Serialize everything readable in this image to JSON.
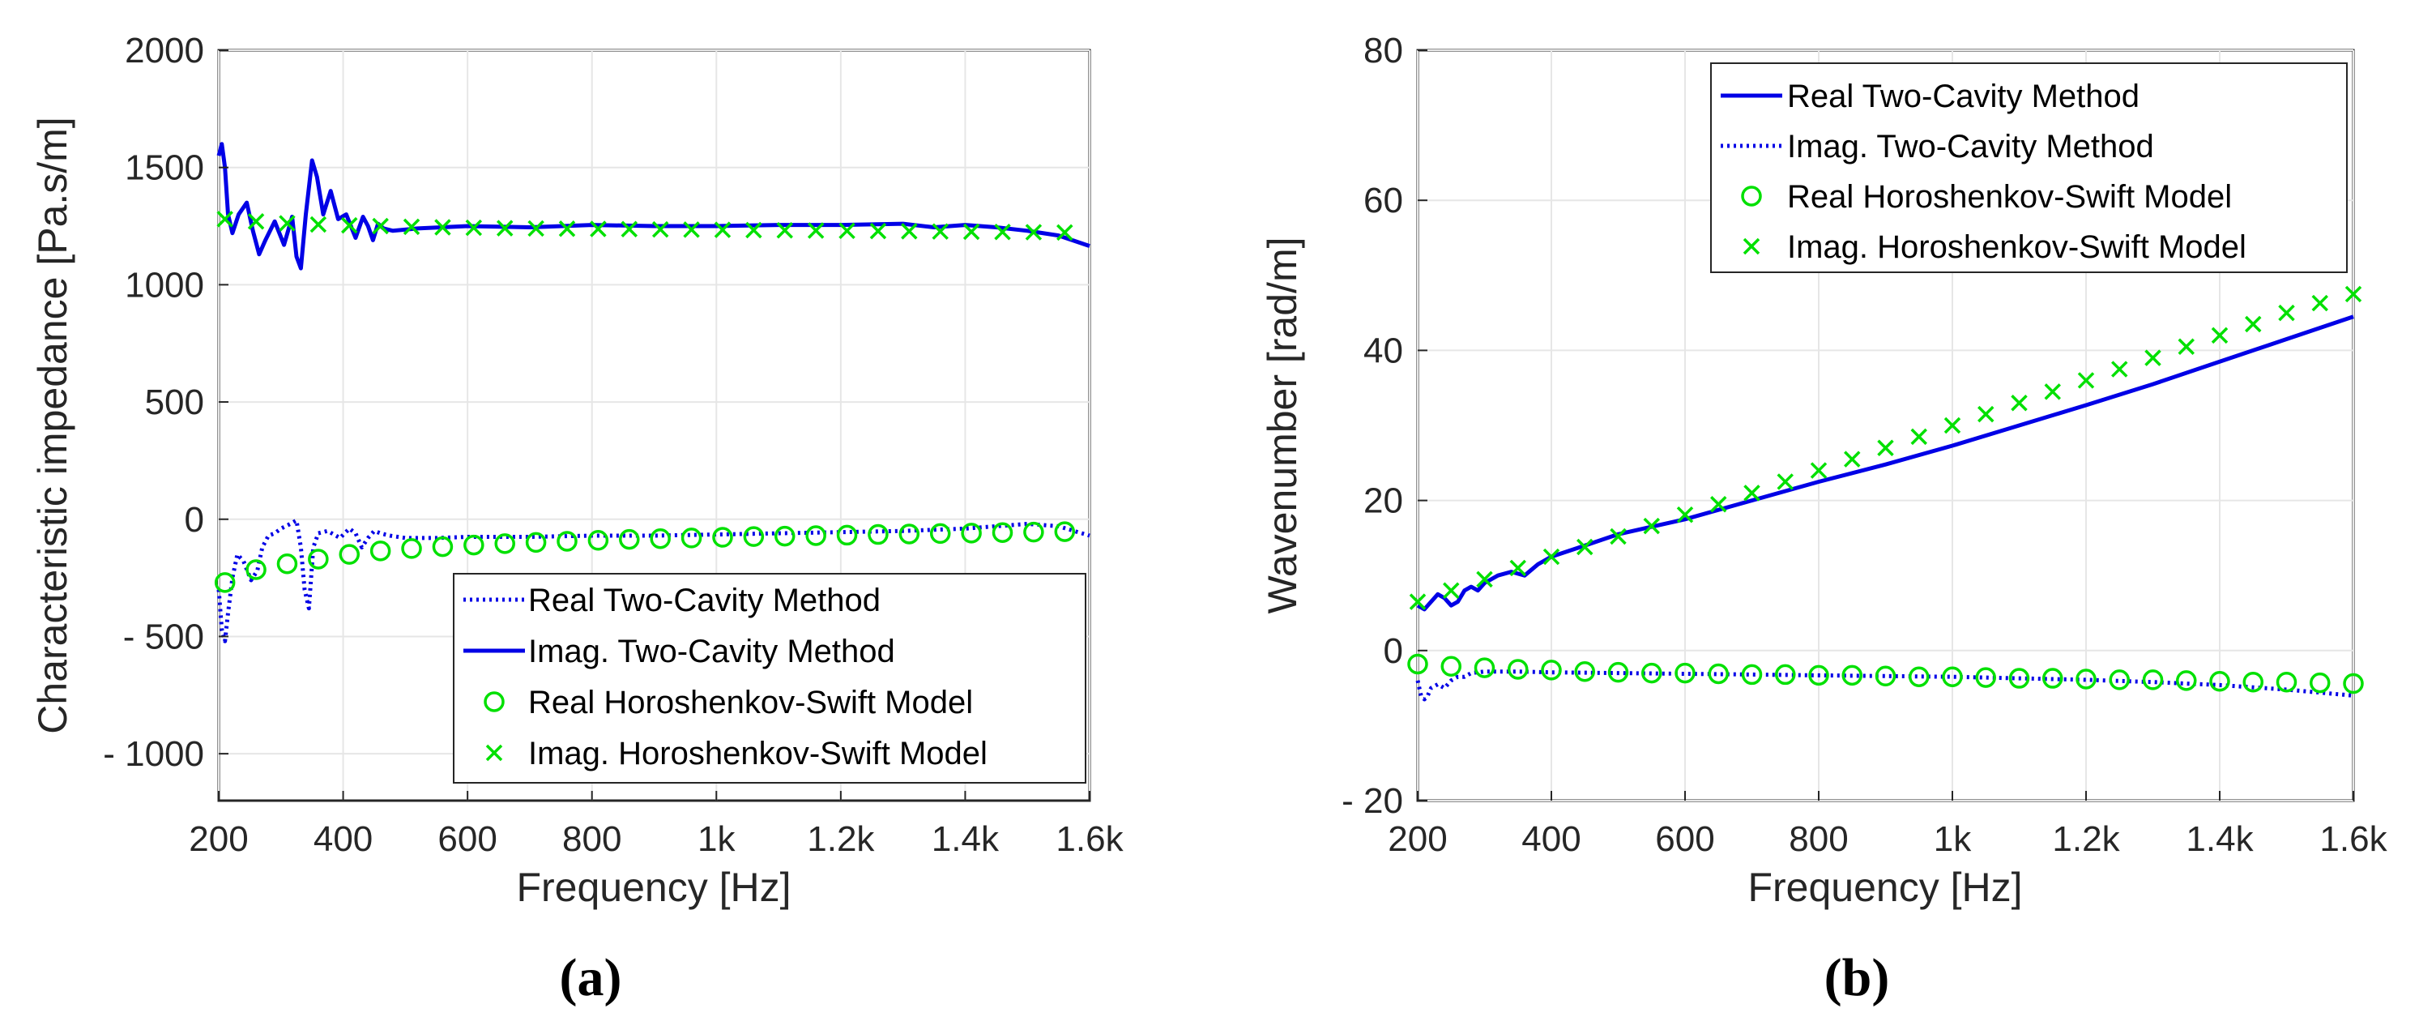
{
  "colors": {
    "line": "#0000e6",
    "marker": "#00e000",
    "grid": "#e6e6e6",
    "axis": "#262626"
  },
  "chart_data": [
    {
      "type": "line",
      "panel_label": "(a)",
      "xlabel": "Frequency [Hz]",
      "ylabel": "Characteristic impedance [Pa.s/m]",
      "xlim": [
        200,
        1600
      ],
      "ylim": [
        -1200,
        2000
      ],
      "xticks": [
        200,
        400,
        600,
        800,
        1000,
        1200,
        1400,
        1600
      ],
      "xtick_labels": [
        "200",
        "400",
        "600",
        "800",
        "1k",
        "1.2k",
        "1.4k",
        "1.6k"
      ],
      "yticks": [
        -1000,
        -500,
        0,
        500,
        1000,
        1500,
        2000
      ],
      "ytick_labels": [
        "- 1000",
        "- 500",
        "0",
        "500",
        "1000",
        "1500",
        "2000"
      ],
      "grid": true,
      "legend_position": "bottom-right",
      "series": [
        {
          "name": "Real Two-Cavity Method",
          "style": "dotted",
          "x": [
            200,
            205,
            210,
            215,
            222,
            230,
            240,
            252,
            262,
            270,
            280,
            290,
            300,
            315,
            325,
            332,
            338,
            345,
            352,
            360,
            375,
            395,
            410,
            420,
            430,
            440,
            450,
            460,
            475,
            500,
            550,
            600,
            650,
            700,
            800,
            900,
            1000,
            1100,
            1200,
            1300,
            1400,
            1450,
            1500,
            1550,
            1600
          ],
          "y": [
            -300,
            -470,
            -520,
            -400,
            -250,
            -150,
            -180,
            -260,
            -220,
            -120,
            -70,
            -60,
            -40,
            -20,
            -5,
            -120,
            -300,
            -380,
            -120,
            -60,
            -50,
            -80,
            -40,
            -60,
            -120,
            -80,
            -50,
            -60,
            -70,
            -80,
            -80,
            -75,
            -75,
            -75,
            -70,
            -70,
            -65,
            -60,
            -55,
            -50,
            -40,
            -30,
            -20,
            -30,
            -70
          ]
        },
        {
          "name": "Imag. Two-Cavity Method",
          "style": "solid",
          "x": [
            200,
            205,
            210,
            215,
            222,
            232,
            245,
            255,
            265,
            275,
            290,
            305,
            318,
            325,
            332,
            340,
            350,
            358,
            368,
            380,
            392,
            405,
            420,
            432,
            440,
            448,
            456,
            465,
            480,
            520,
            600,
            700,
            800,
            900,
            1000,
            1100,
            1200,
            1300,
            1350,
            1400,
            1450,
            1500,
            1550,
            1600
          ],
          "y": [
            1550,
            1600,
            1500,
            1300,
            1220,
            1300,
            1350,
            1230,
            1130,
            1190,
            1270,
            1170,
            1290,
            1120,
            1070,
            1300,
            1530,
            1460,
            1300,
            1400,
            1280,
            1300,
            1200,
            1290,
            1250,
            1190,
            1260,
            1240,
            1230,
            1240,
            1250,
            1245,
            1255,
            1250,
            1250,
            1255,
            1255,
            1260,
            1245,
            1255,
            1245,
            1230,
            1210,
            1165
          ]
        },
        {
          "name": "Real Horoshenkov-Swift Model",
          "marker": "o",
          "x": [
            210,
            260,
            310,
            360,
            410,
            460,
            510,
            560,
            610,
            660,
            710,
            760,
            810,
            860,
            910,
            960,
            1010,
            1060,
            1110,
            1160,
            1210,
            1260,
            1310,
            1360,
            1410,
            1460,
            1510,
            1560
          ],
          "y": [
            -270,
            -215,
            -190,
            -170,
            -150,
            -135,
            -125,
            -117,
            -110,
            -104,
            -99,
            -94,
            -90,
            -86,
            -83,
            -80,
            -77,
            -74,
            -72,
            -70,
            -68,
            -65,
            -63,
            -61,
            -59,
            -57,
            -55,
            -53
          ]
        },
        {
          "name": "Imag. Horoshenkov-Swift Model",
          "marker": "x",
          "x": [
            210,
            260,
            310,
            360,
            410,
            460,
            510,
            560,
            610,
            660,
            710,
            760,
            810,
            860,
            910,
            960,
            1010,
            1060,
            1110,
            1160,
            1210,
            1260,
            1310,
            1360,
            1410,
            1460,
            1510,
            1560
          ],
          "y": [
            1280,
            1270,
            1262,
            1257,
            1253,
            1250,
            1247,
            1245,
            1243,
            1241,
            1240,
            1239,
            1238,
            1237,
            1236,
            1235,
            1234,
            1233,
            1232,
            1231,
            1230,
            1229,
            1228,
            1227,
            1226,
            1225,
            1224,
            1223
          ]
        }
      ]
    },
    {
      "type": "line",
      "panel_label": "(b)",
      "xlabel": "Frequency [Hz]",
      "ylabel": "Wavenumber [rad/m]",
      "xlim": [
        200,
        1600
      ],
      "ylim": [
        -20,
        80
      ],
      "xticks": [
        200,
        400,
        600,
        800,
        1000,
        1200,
        1400,
        1600
      ],
      "xtick_labels": [
        "200",
        "400",
        "600",
        "800",
        "1k",
        "1.2k",
        "1.4k",
        "1.6k"
      ],
      "yticks": [
        -20,
        0,
        20,
        40,
        60,
        80
      ],
      "ytick_labels": [
        "- 20",
        "0",
        "20",
        "40",
        "60",
        "80"
      ],
      "grid": true,
      "legend_position": "top-right",
      "series": [
        {
          "name": "Real Two-Cavity Method",
          "style": "solid",
          "x": [
            200,
            210,
            220,
            230,
            240,
            250,
            260,
            270,
            280,
            290,
            300,
            320,
            340,
            360,
            380,
            400,
            450,
            500,
            600,
            700,
            800,
            900,
            1000,
            1100,
            1200,
            1300,
            1400,
            1500,
            1600
          ],
          "y": [
            6,
            5.5,
            6.5,
            7.5,
            7,
            6,
            6.5,
            8,
            8.5,
            8,
            9,
            10,
            10.5,
            10,
            11.5,
            12.5,
            14,
            15.5,
            17.5,
            20,
            22.5,
            24.8,
            27.3,
            30,
            32.7,
            35.5,
            38.5,
            41.5,
            44.5
          ]
        },
        {
          "name": "Imag. Two-Cavity Method",
          "style": "dotted",
          "x": [
            200,
            205,
            210,
            215,
            220,
            230,
            240,
            250,
            260,
            270,
            280,
            300,
            350,
            400,
            500,
            600,
            700,
            800,
            900,
            1000,
            1100,
            1200,
            1300,
            1400,
            1500,
            1600
          ],
          "y": [
            -4,
            -6,
            -6.5,
            -6,
            -5,
            -4.5,
            -5,
            -4,
            -3.5,
            -3.5,
            -3,
            -2.8,
            -2.8,
            -2.9,
            -3,
            -3.1,
            -3.2,
            -3.3,
            -3.4,
            -3.5,
            -3.7,
            -3.9,
            -4.2,
            -4.6,
            -5.2,
            -6
          ]
        },
        {
          "name": "Real Horoshenkov-Swift Model",
          "marker": "o",
          "x": [
            200,
            250,
            300,
            350,
            400,
            450,
            500,
            550,
            600,
            650,
            700,
            750,
            800,
            850,
            900,
            950,
            1000,
            1050,
            1100,
            1150,
            1200,
            1250,
            1300,
            1350,
            1400,
            1450,
            1500,
            1550,
            1600
          ],
          "y": [
            -1.8,
            -2.1,
            -2.3,
            -2.5,
            -2.6,
            -2.8,
            -2.9,
            -3.0,
            -3.0,
            -3.1,
            -3.2,
            -3.2,
            -3.3,
            -3.3,
            -3.4,
            -3.5,
            -3.5,
            -3.6,
            -3.7,
            -3.7,
            -3.8,
            -3.9,
            -3.9,
            -4.0,
            -4.1,
            -4.2,
            -4.2,
            -4.3,
            -4.4
          ]
        },
        {
          "name": "Imag. Horoshenkov-Swift Model",
          "marker": "x",
          "x": [
            200,
            250,
            300,
            350,
            400,
            450,
            500,
            550,
            600,
            650,
            700,
            750,
            800,
            850,
            900,
            950,
            1000,
            1050,
            1100,
            1150,
            1200,
            1250,
            1300,
            1350,
            1400,
            1450,
            1500,
            1550,
            1600
          ],
          "y": [
            6.5,
            8.0,
            9.5,
            11.0,
            12.5,
            13.8,
            15.2,
            16.6,
            18.1,
            19.5,
            21.0,
            22.5,
            24.0,
            25.5,
            27.0,
            28.5,
            30.0,
            31.5,
            33.0,
            34.5,
            36.0,
            37.5,
            39.0,
            40.5,
            42.0,
            43.5,
            45.0,
            46.3,
            47.5
          ]
        }
      ]
    }
  ]
}
